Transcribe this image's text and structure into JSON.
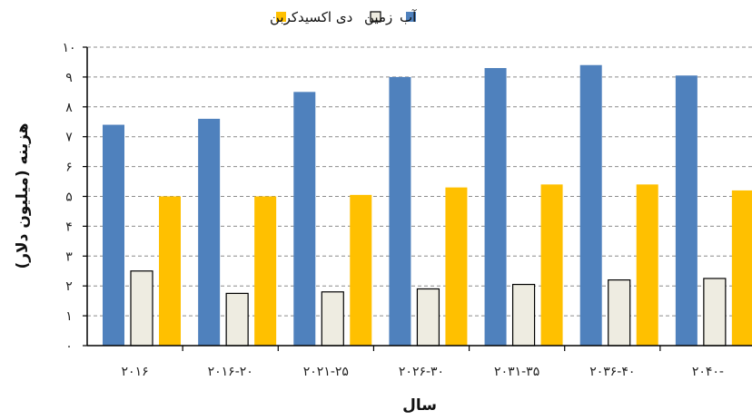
{
  "chart_data": {
    "type": "bar",
    "categories": [
      "۲۰۱۶",
      "۲۰۱۶-۲۰",
      "۲۰۲۱-۲۵",
      "۲۰۲۶-۳۰",
      "۲۰۳۱-۳۵",
      "۲۰۳۶-۴۰",
      "۲۰۴۰-"
    ],
    "series": [
      {
        "name": "آب",
        "color": "#4f81bd",
        "values": [
          7.4,
          7.6,
          8.5,
          9.0,
          9.3,
          9.4,
          9.05
        ]
      },
      {
        "name": "زمین",
        "color": "#eeece1",
        "values": [
          2.5,
          1.75,
          1.8,
          1.9,
          2.05,
          2.2,
          2.25
        ]
      },
      {
        "name": "دی اکسیدکربن",
        "color": "#ffc000",
        "values": [
          5.0,
          5.0,
          5.05,
          5.3,
          5.4,
          5.4,
          5.2
        ]
      }
    ],
    "xlabel": "سال",
    "ylabel": "هزینه (میلیون دلار)",
    "ylim": [
      0,
      10
    ],
    "yticks": [
      0,
      1,
      2,
      3,
      4,
      5,
      6,
      7,
      8,
      9,
      10
    ],
    "ytick_labels": [
      "۰",
      "۱",
      "۲",
      "۳",
      "۴",
      "۵",
      "۶",
      "۷",
      "۸",
      "۹",
      "۱۰"
    ],
    "grid": true,
    "legend_position": "top-center"
  }
}
